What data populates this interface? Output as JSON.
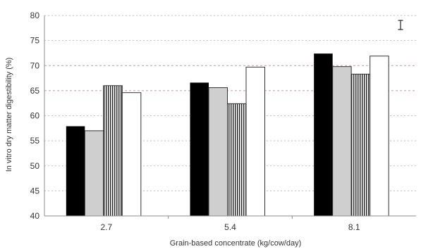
{
  "chart_data": {
    "type": "bar",
    "categories": [
      "2.7",
      "5.4",
      "8.1"
    ],
    "series": [
      {
        "values": [
          57.9,
          66.6,
          72.4
        ],
        "fill": "solid-black"
      },
      {
        "values": [
          57.0,
          65.6,
          69.8
        ],
        "fill": "light-gray"
      },
      {
        "values": [
          66.0,
          62.4,
          68.3
        ],
        "fill": "vertical-stripes"
      },
      {
        "values": [
          64.6,
          69.7,
          71.9
        ],
        "fill": "white"
      }
    ],
    "xlabel": "Grain-based concentrate (kg/cow/day)",
    "ylabel": "In vitro dry matter digestibility (%)",
    "ylim": [
      40,
      80
    ],
    "yticks": [
      "40",
      "45",
      "50",
      "55",
      "60",
      "65",
      "70",
      "75",
      "80"
    ],
    "grid": true,
    "error_bar_marker": "I"
  }
}
